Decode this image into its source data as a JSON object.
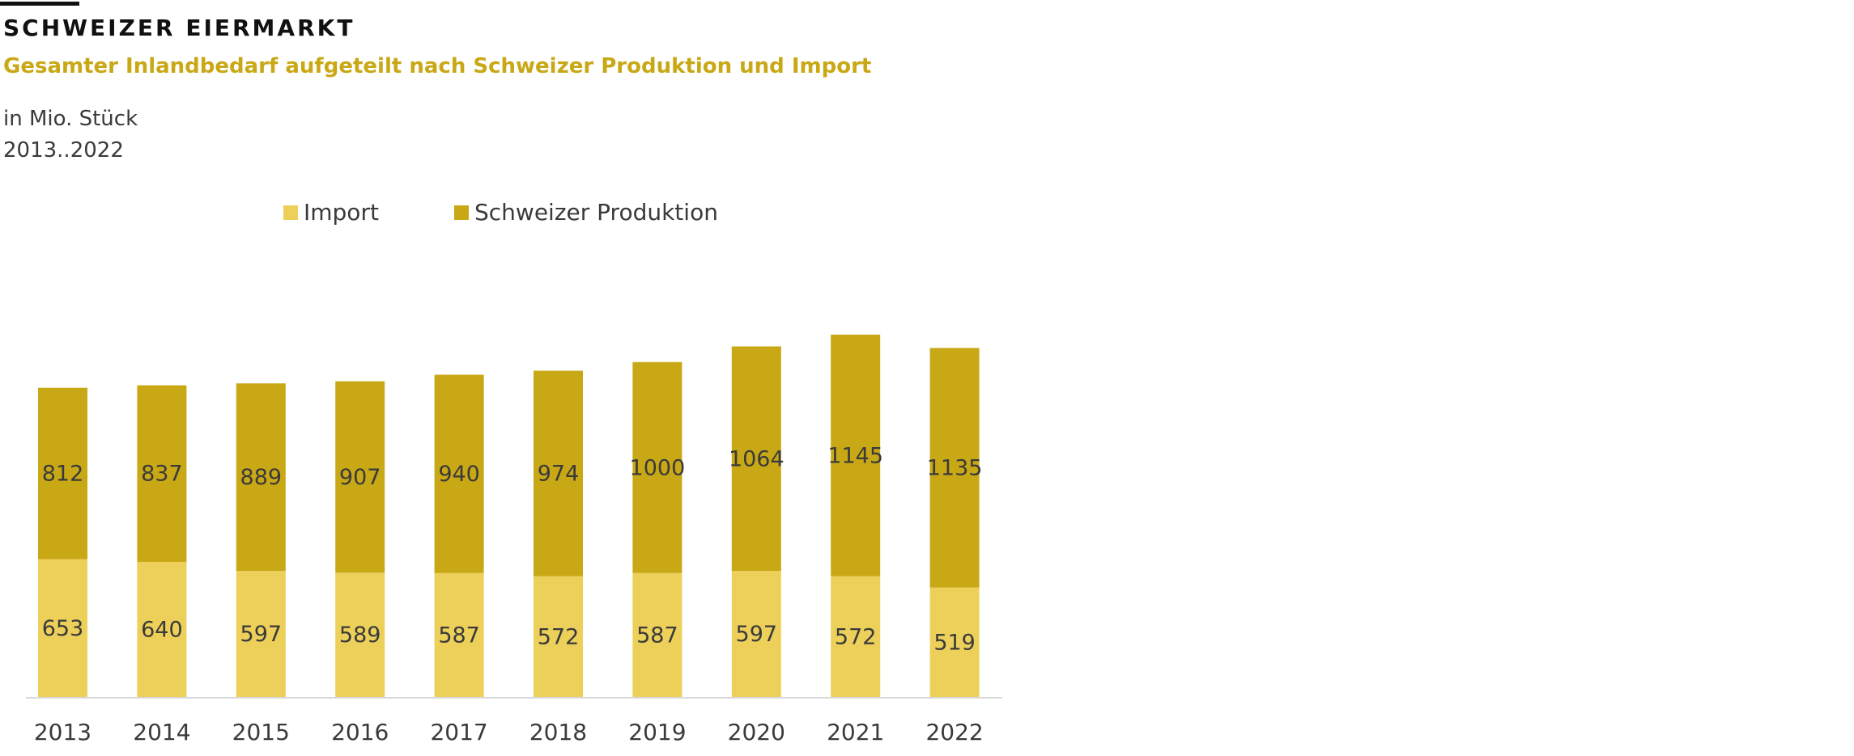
{
  "header": {
    "title": "SCHWEIZER EIERMARKT",
    "subtitle": "Gesamter Inlandbedarf aufgeteilt nach Schweizer Produktion und Import",
    "unit": "in Mio. Stück",
    "range": "2013..2022"
  },
  "colors": {
    "import": "#edd05a",
    "production": "#c9a816",
    "accent": "#c9a816",
    "axis": "#d9d9d9",
    "text": "#3a3a3a"
  },
  "chart_data": {
    "type": "bar",
    "stacked": true,
    "title": "SCHWEIZER EIERMARKT",
    "subtitle": "Gesamter Inlandbedarf aufgeteilt nach Schweizer Produktion und Import",
    "ylabel": "in Mio. Stück",
    "categories": [
      "2013",
      "2014",
      "2015",
      "2016",
      "2017",
      "2018",
      "2019",
      "2020",
      "2021",
      "2022"
    ],
    "series": [
      {
        "name": "Import",
        "values": [
          653,
          640,
          597,
          589,
          587,
          572,
          587,
          597,
          572,
          519
        ]
      },
      {
        "name": "Schweizer Produktion",
        "values": [
          812,
          837,
          889,
          907,
          940,
          974,
          1000,
          1064,
          1145,
          1135
        ]
      }
    ],
    "ylim": [
      0,
      1800
    ],
    "grid": false,
    "legend": "top"
  }
}
